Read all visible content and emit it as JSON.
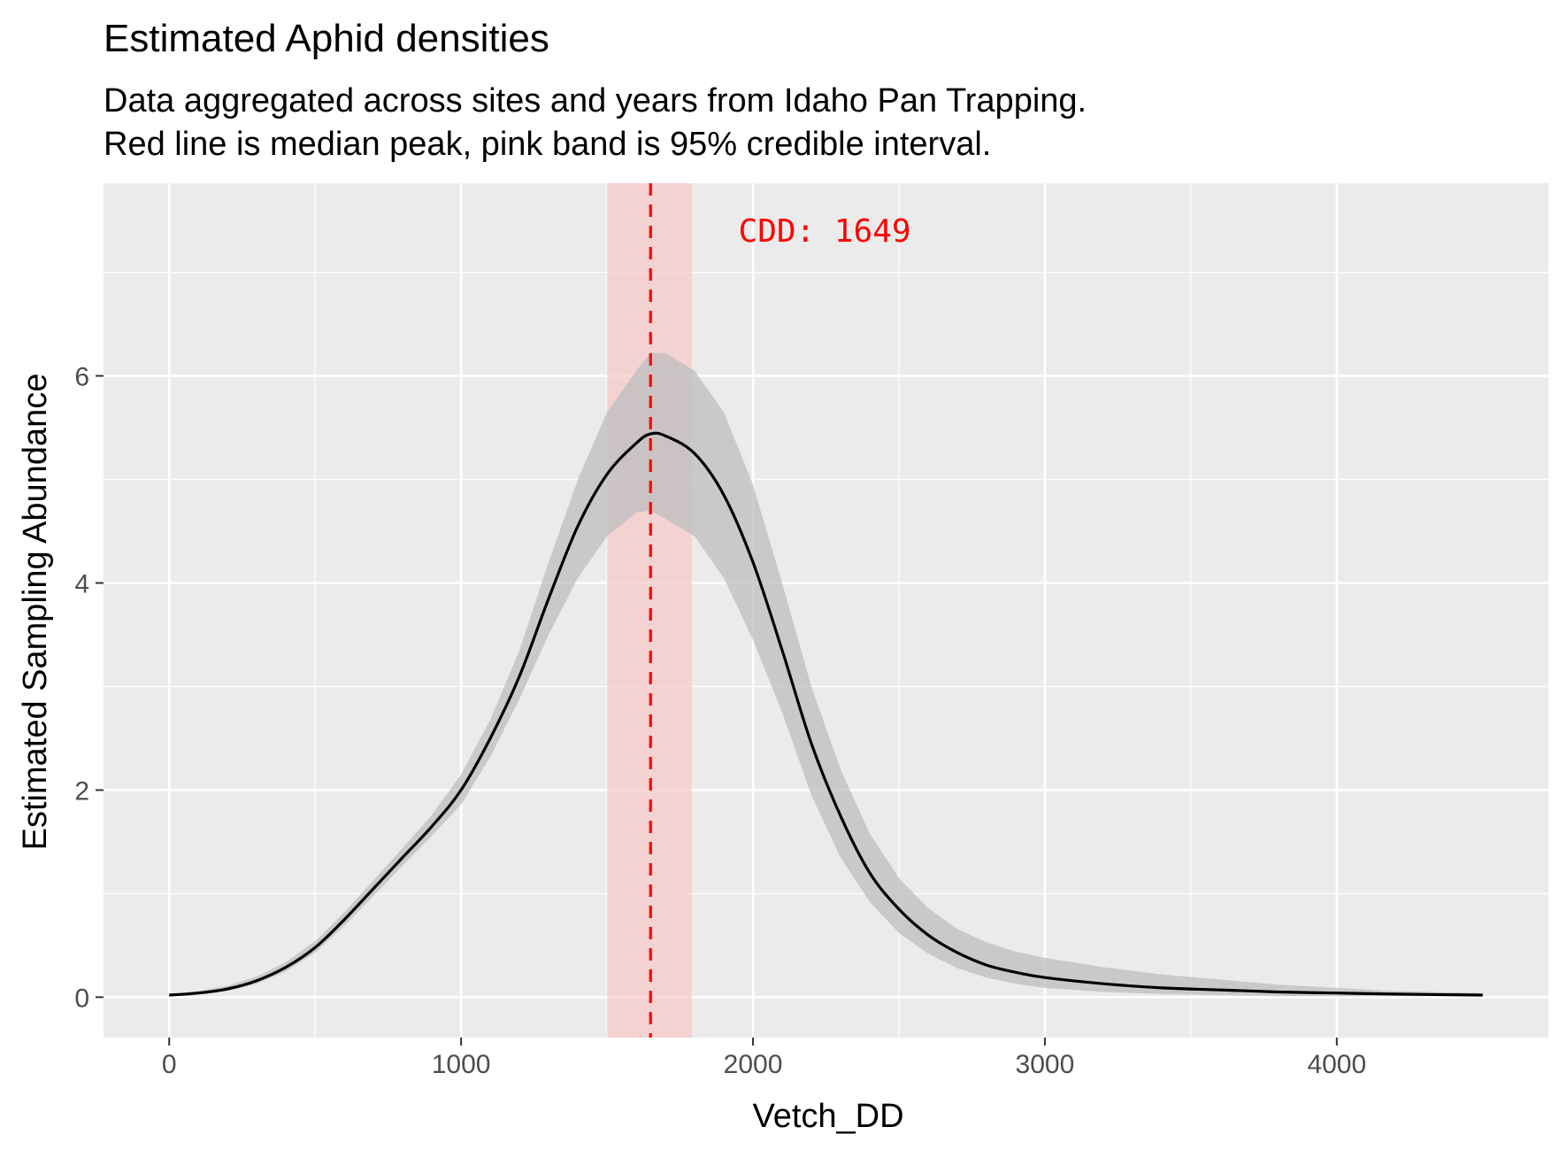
{
  "chart_data": {
    "type": "line",
    "title": "Estimated Aphid densities",
    "subtitle_lines": [
      "Data aggregated across sites and years from Idaho Pan Trapping.",
      "Red line is median peak, pink band is 95% credible interval."
    ],
    "xlabel": "Vetch_DD",
    "ylabel": "Estimated Sampling Abundance",
    "xlim": [
      -225,
      4725
    ],
    "ylim": [
      -0.39,
      7.86
    ],
    "x_ticks": [
      0,
      1000,
      2000,
      3000,
      4000
    ],
    "y_ticks": [
      0,
      2,
      4,
      6
    ],
    "grid": true,
    "legend": "none",
    "series": [
      {
        "x": [
          0,
          100,
          200,
          300,
          400,
          500,
          600,
          700,
          800,
          900,
          1000,
          1100,
          1200,
          1300,
          1400,
          1500,
          1600,
          1649,
          1700,
          1800,
          1900,
          2000,
          2100,
          2200,
          2300,
          2400,
          2500,
          2600,
          2700,
          2800,
          2900,
          3000,
          3200,
          3400,
          3600,
          3800,
          4000,
          4200,
          4500
        ],
        "y": [
          0.02,
          0.04,
          0.08,
          0.16,
          0.29,
          0.48,
          0.75,
          1.05,
          1.35,
          1.65,
          2.0,
          2.5,
          3.1,
          3.85,
          4.55,
          5.05,
          5.35,
          5.44,
          5.42,
          5.25,
          4.85,
          4.2,
          3.35,
          2.45,
          1.75,
          1.2,
          0.85,
          0.6,
          0.43,
          0.31,
          0.24,
          0.19,
          0.13,
          0.09,
          0.07,
          0.05,
          0.04,
          0.03,
          0.02
        ],
        "lower": [
          0.01,
          0.03,
          0.06,
          0.13,
          0.25,
          0.43,
          0.69,
          0.98,
          1.27,
          1.56,
          1.86,
          2.32,
          2.88,
          3.5,
          4.05,
          4.45,
          4.68,
          4.7,
          4.62,
          4.45,
          4.05,
          3.45,
          2.75,
          1.95,
          1.35,
          0.92,
          0.62,
          0.42,
          0.28,
          0.19,
          0.13,
          0.09,
          0.05,
          0.03,
          0.02,
          0.01,
          0.01,
          0.01,
          0.01
        ],
        "upper": [
          0.03,
          0.06,
          0.11,
          0.2,
          0.34,
          0.54,
          0.82,
          1.13,
          1.44,
          1.76,
          2.15,
          2.68,
          3.35,
          4.2,
          5.0,
          5.65,
          6.05,
          6.22,
          6.22,
          6.05,
          5.65,
          4.95,
          4.0,
          3.0,
          2.2,
          1.58,
          1.15,
          0.86,
          0.66,
          0.53,
          0.44,
          0.38,
          0.29,
          0.22,
          0.17,
          0.12,
          0.09,
          0.06,
          0.04
        ]
      }
    ],
    "peak": {
      "median_x": 1649,
      "ci_lower": 1500,
      "ci_upper": 1790,
      "label": "CDD: 1649",
      "label_x": 1950,
      "label_y": 7.4
    },
    "colors": {
      "panel_bg": "#ebebeb",
      "grid": "#ffffff",
      "line": "#000000",
      "ribbon": "#bdbdbd",
      "peak_line": "#ff0000",
      "ci_band": "#f8c8c8",
      "tick_text": "#4d4d4d",
      "tick_mark": "#333333"
    }
  }
}
